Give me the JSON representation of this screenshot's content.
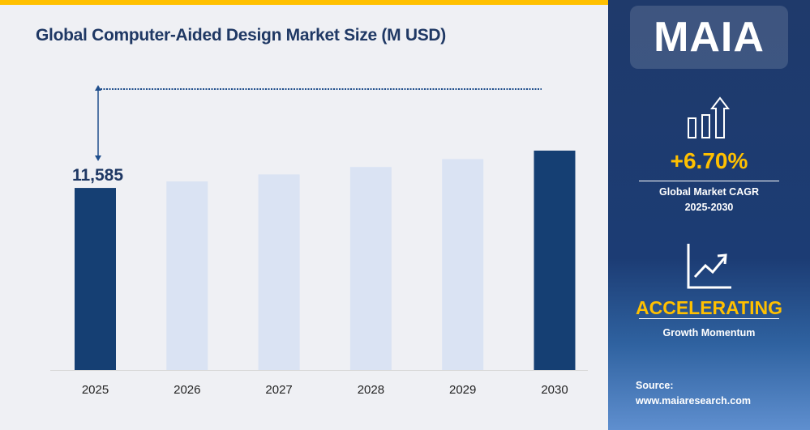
{
  "chart_data": {
    "type": "bar",
    "title": "Global Computer-Aided Design Market Size (M USD)",
    "categories": [
      "2025",
      "2026",
      "2027",
      "2028",
      "2029",
      "2030"
    ],
    "values": [
      11585,
      12361,
      13189,
      14073,
      15016,
      16022
    ],
    "highlighted": [
      "2025",
      "2030"
    ],
    "data_labels": {
      "2025": "11,585"
    },
    "ylim": [
      -10075,
      16022
    ],
    "grid": false,
    "colors": {
      "highlight": "#153f73",
      "normal": "#dae3f3"
    }
  },
  "sidebar": {
    "logo": "MAIA",
    "cagr_value": "+6.70%",
    "cagr_label_line1": "Global Market CAGR",
    "cagr_label_line2": "2025-2030",
    "momentum_value": "ACCELERATING",
    "momentum_label": "Growth Momentum",
    "source_label": "Source:",
    "source_url": "www.maiaresearch.com",
    "accent": "#ffc000"
  }
}
